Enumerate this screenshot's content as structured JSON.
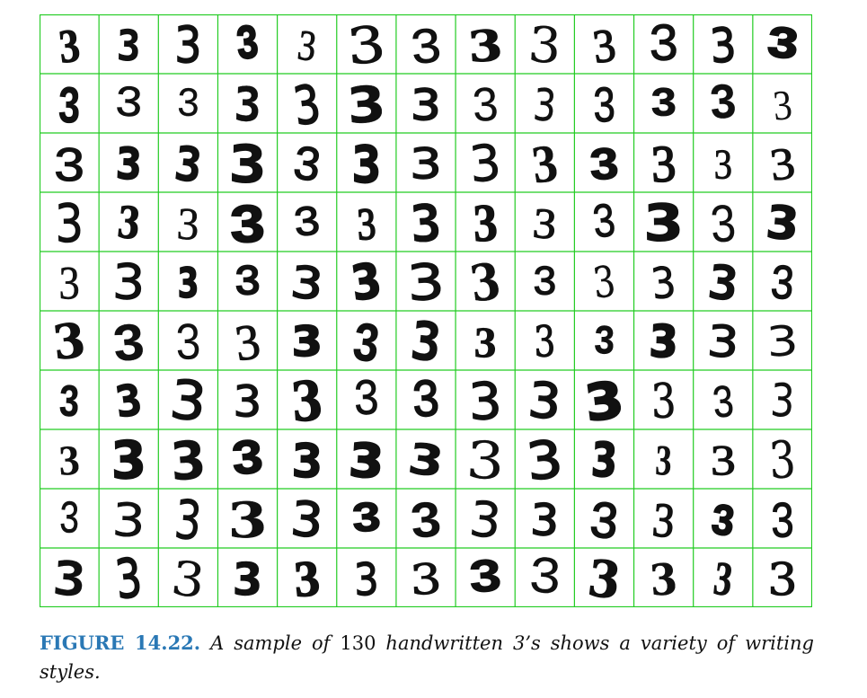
{
  "figure": {
    "digit": "3",
    "rows": 10,
    "cols": 13,
    "grid_color": "#22cc22",
    "ink_color": "#111111"
  },
  "caption": {
    "label": "FIGURE 14.22.",
    "text_before": "A sample of",
    "count": "130",
    "text_after": "handwritten 3’s shows a variety of writing styles."
  }
}
